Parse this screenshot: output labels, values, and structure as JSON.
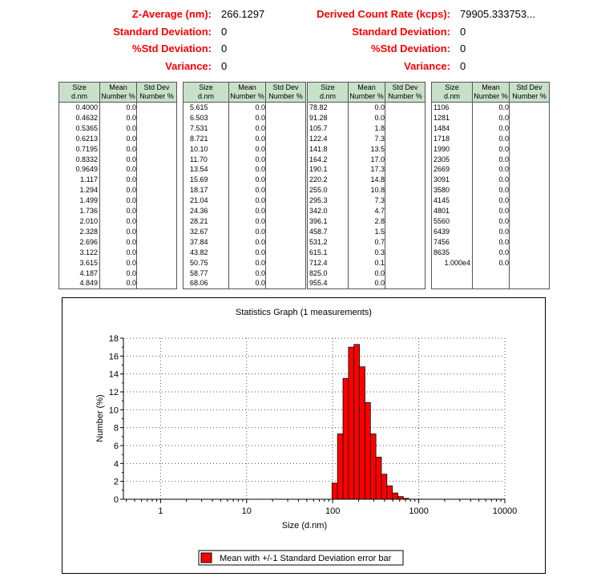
{
  "stats_left": [
    {
      "label": "Z-Average (nm):",
      "value": "266.1297"
    },
    {
      "label": "Standard Deviation:",
      "value": "0"
    },
    {
      "label": "%Std Deviation:",
      "value": "0"
    },
    {
      "label": "Variance:",
      "value": "0"
    }
  ],
  "stats_right": [
    {
      "label": "Derived Count Rate (kcps):",
      "value": "79905.333753..."
    },
    {
      "label": "Standard Deviation:",
      "value": "0"
    },
    {
      "label": "%Std Deviation:",
      "value": "0"
    },
    {
      "label": "Variance:",
      "value": "0"
    }
  ],
  "table_headers": {
    "size": [
      "Size",
      "d.nm"
    ],
    "mean": [
      "Mean",
      "Number %"
    ],
    "std": [
      "Std Dev",
      "Number %"
    ]
  },
  "tables": [
    {
      "size": [
        "0.4000",
        "0.4632",
        "0.5365",
        "0.6213",
        "0.7195",
        "0.8332",
        "0.9649",
        "1.117",
        "1.294",
        "1.499",
        "1.736",
        "2.010",
        "2.328",
        "2.696",
        "3.122",
        "3.615",
        "4.187",
        "4.849"
      ],
      "mean": [
        "0.0",
        "0.0",
        "0.0",
        "0.0",
        "0.0",
        "0.0",
        "0.0",
        "0.0",
        "0.0",
        "0.0",
        "0.0",
        "0.0",
        "0.0",
        "0.0",
        "0.0",
        "0.0",
        "0.0",
        "0.0"
      ]
    },
    {
      "size": [
        "5.615",
        "6.503",
        "7.531",
        "8.721",
        "10.10",
        "11.70",
        "13.54",
        "15.69",
        "18.17",
        "21.04",
        "24.36",
        "28.21",
        "32.67",
        "37.84",
        "43.82",
        "50.75",
        "58.77",
        "68.06"
      ],
      "mean": [
        "0.0",
        "0.0",
        "0.0",
        "0.0",
        "0.0",
        "0.0",
        "0.0",
        "0.0",
        "0.0",
        "0.0",
        "0.0",
        "0.0",
        "0.0",
        "0.0",
        "0.0",
        "0.0",
        "0.0",
        "0.0"
      ]
    },
    {
      "size": [
        "78.82",
        "91.28",
        "105.7",
        "122.4",
        "141.8",
        "164.2",
        "190.1",
        "220.2",
        "255.0",
        "295.3",
        "342.0",
        "396.1",
        "458.7",
        "531.2",
        "615.1",
        "712.4",
        "825.0",
        "955.4"
      ],
      "mean": [
        "0.0",
        "0.0",
        "1.8",
        "7.3",
        "13.5",
        "17.0",
        "17.3",
        "14.8",
        "10.8",
        "7.3",
        "4.7",
        "2.8",
        "1.5",
        "0.7",
        "0.3",
        "0.1",
        "0.0",
        "0.0"
      ]
    },
    {
      "size": [
        "1106",
        "1281",
        "1484",
        "1718",
        "1990",
        "2305",
        "2669",
        "3091",
        "3580",
        "4145",
        "4801",
        "5560",
        "6439",
        "7456",
        "8635",
        "1.000e4",
        "",
        ""
      ],
      "mean": [
        "0.0",
        "0.0",
        "0.0",
        "0.0",
        "0.0",
        "0.0",
        "0.0",
        "0.0",
        "0.0",
        "0.0",
        "0.0",
        "0.0",
        "0.0",
        "0.0",
        "0.0",
        "0.0",
        "",
        ""
      ]
    }
  ],
  "chart_data": {
    "type": "bar",
    "title": "Statistics Graph (1 measurements)",
    "xlabel": "Size (d.nm)",
    "ylabel": "Number (%)",
    "x_scale": "log",
    "xlim": [
      0.37,
      10000
    ],
    "ylim": [
      0,
      18
    ],
    "x_ticks": [
      "1",
      "10",
      "100",
      "1000",
      "10000"
    ],
    "y_ticks": [
      "0",
      "2",
      "4",
      "6",
      "8",
      "10",
      "12",
      "14",
      "16",
      "18"
    ],
    "grid": true,
    "legend_position": "bottom",
    "bar_color": "#ff0000",
    "series": [
      {
        "name": "Mean with +/-1 Standard Deviation error bar",
        "x": [
          105.7,
          122.4,
          141.8,
          164.2,
          190.1,
          220.2,
          255.0,
          295.3,
          342.0,
          396.1,
          458.7,
          531.2,
          615.1,
          712.4
        ],
        "values": [
          1.8,
          7.3,
          13.5,
          17.0,
          17.3,
          14.8,
          10.8,
          7.3,
          4.7,
          2.8,
          1.5,
          0.7,
          0.3,
          0.1
        ]
      }
    ]
  }
}
